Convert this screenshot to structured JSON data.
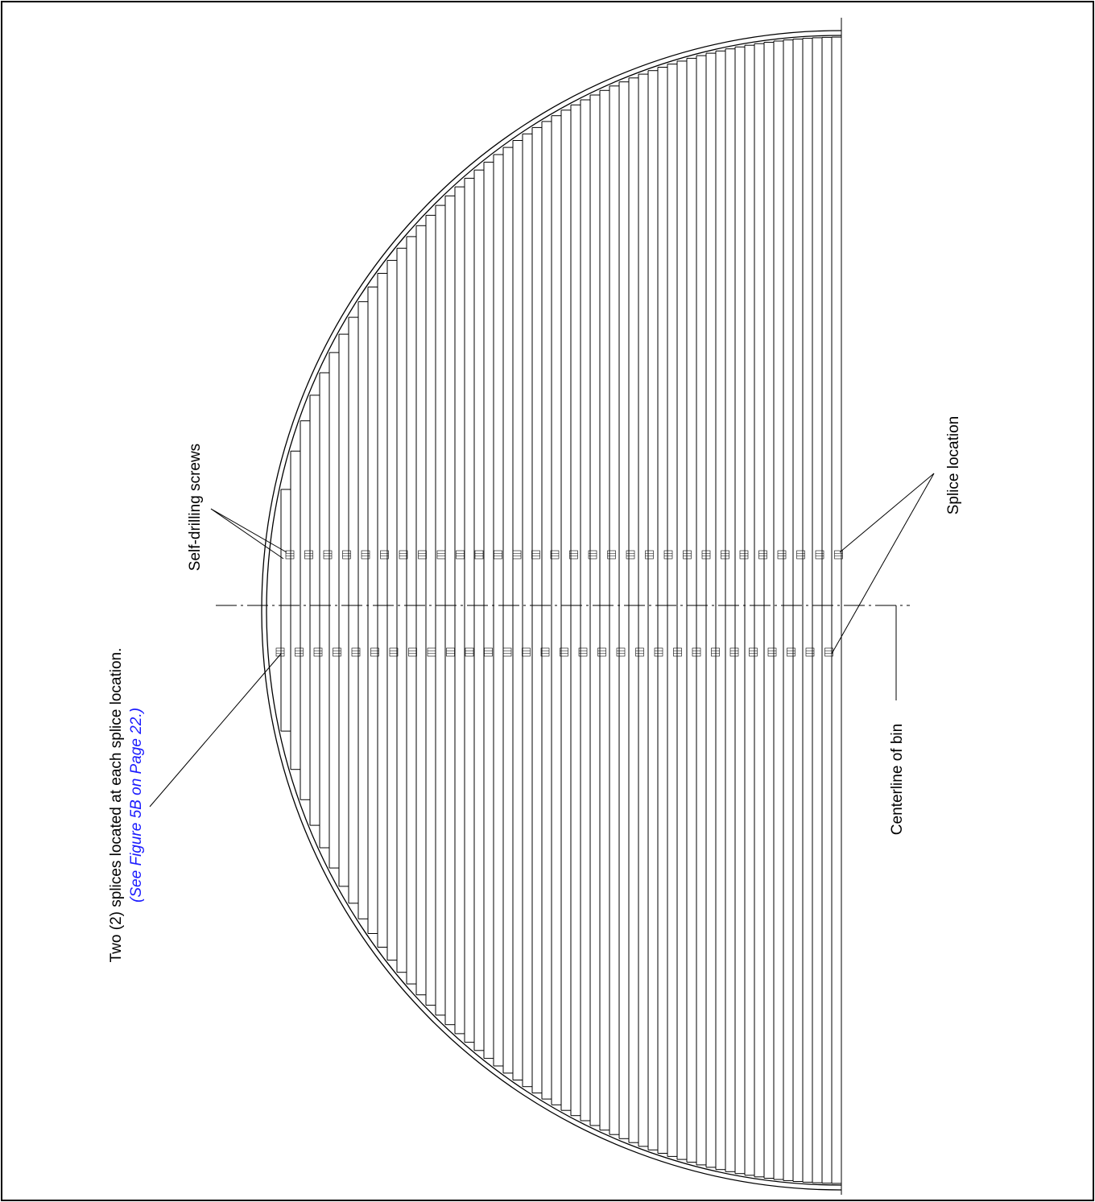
{
  "labels": {
    "two_splices": "Two (2) splices located at each splice location.",
    "see_reference": "(See Figure 5B on Page 22.)",
    "self_drilling_screws": "Self-drilling screws",
    "splice_location": "Splice location",
    "centerline": "Centerline of bin"
  },
  "colors": {
    "line": "#000000",
    "reference_text": "#1a1aff",
    "background": "#ffffff"
  }
}
